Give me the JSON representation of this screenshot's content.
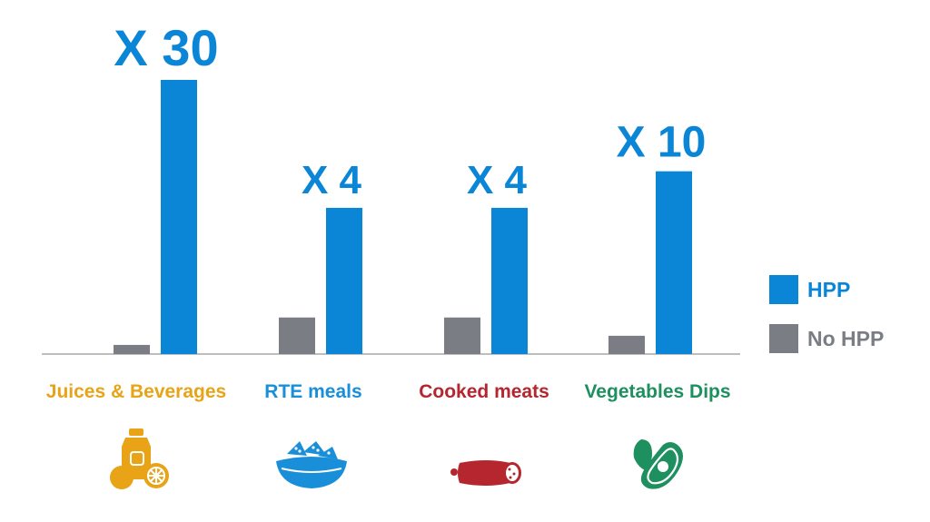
{
  "chart_data": {
    "type": "bar",
    "title": "",
    "xlabel": "",
    "ylabel": "",
    "grid": false,
    "legend_position": "right",
    "categories": [
      "Juices & Beverages",
      "RTE meals",
      "Cooked meats",
      "Vegetables Dips"
    ],
    "category_colors": [
      "#e8a317",
      "#1a8fd9",
      "#b5262e",
      "#1e8f5e"
    ],
    "series": [
      {
        "name": "No HPP",
        "color": "#7a7e84",
        "values": [
          1,
          4,
          4,
          2
        ]
      },
      {
        "name": "HPP",
        "color": "#0b86d6",
        "values": [
          30,
          16,
          16,
          20
        ]
      }
    ],
    "multipliers": [
      "X 30",
      "X 4",
      "X 4",
      "X 10"
    ],
    "ylim": [
      0,
      30
    ]
  },
  "icons": [
    "juice-fruit-icon",
    "bowl-nachos-icon",
    "sausage-icon",
    "avocado-icon"
  ]
}
